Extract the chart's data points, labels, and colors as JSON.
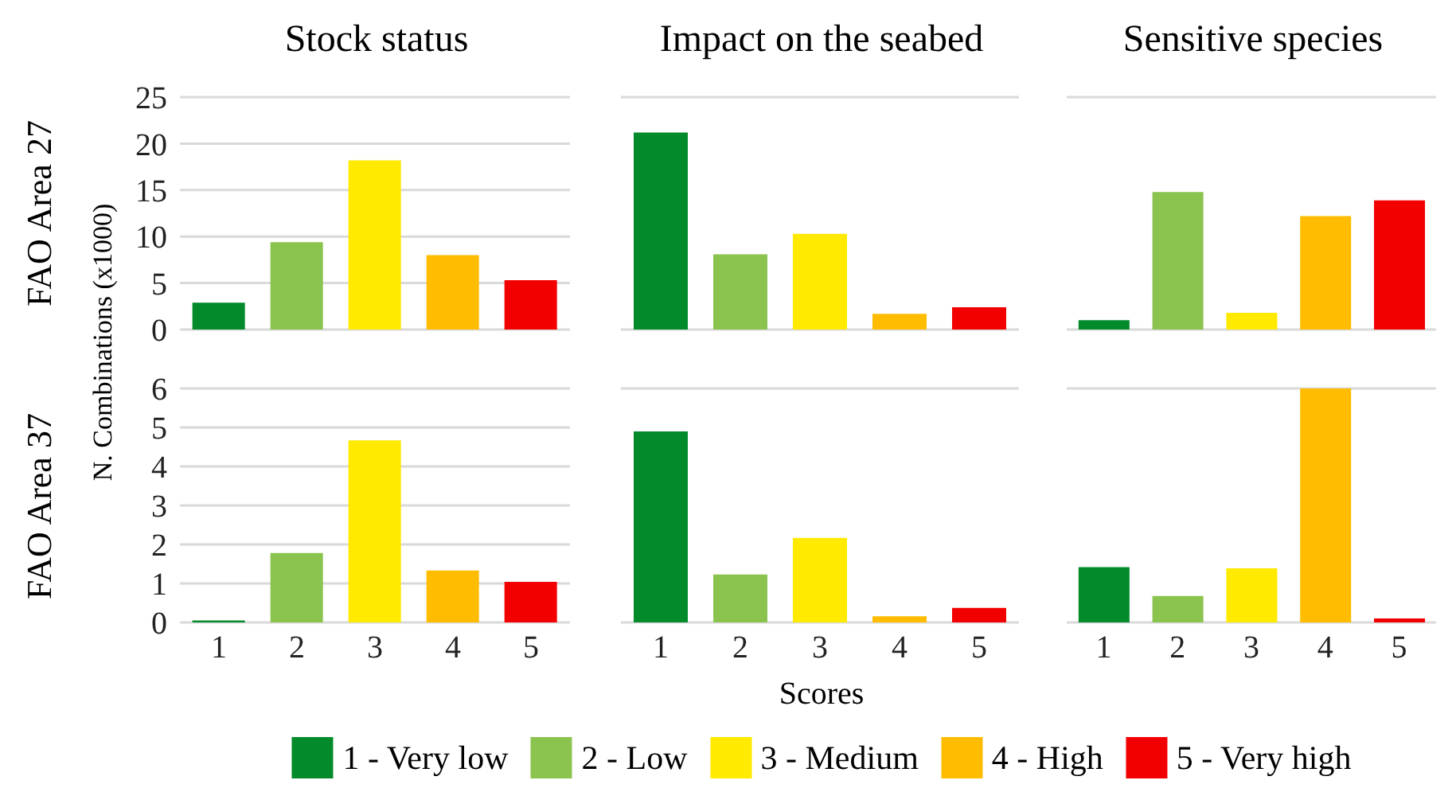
{
  "chart_data": [
    {
      "type": "bar",
      "title": "Stock status",
      "annotations": [
        "FAO Area 27"
      ],
      "categories": [
        "1",
        "2",
        "3",
        "4",
        "5"
      ],
      "stacked": true,
      "ylim": [
        0,
        25
      ],
      "yticks": [
        0,
        5,
        10,
        15,
        20,
        25
      ],
      "grid": "y",
      "tick_labels": "y",
      "series": [
        {
          "color": "#028a2b",
          "values": [
            2.9,
            null,
            null,
            null,
            null
          ]
        },
        {
          "color": "#8bc34f",
          "values": [
            null,
            9.4,
            null,
            null,
            null
          ]
        },
        {
          "color": "#ffea00",
          "values": [
            null,
            null,
            18.2,
            null,
            null
          ]
        },
        {
          "color": "#ffbc00",
          "values": [
            null,
            null,
            null,
            8.0,
            null
          ]
        },
        {
          "color": "#f20000",
          "values": [
            null,
            null,
            null,
            null,
            5.3
          ]
        }
      ]
    },
    {
      "type": "bar",
      "title": "Impact on the seabed",
      "categories": [
        "1",
        "2",
        "3",
        "4",
        "5"
      ],
      "stacked": true,
      "ylim": [
        0,
        25
      ],
      "yticks": [
        0,
        5,
        10,
        15,
        20,
        25
      ],
      "grid": "y",
      "tick_labels": false,
      "series": [
        {
          "color": "#028a2b",
          "values": [
            21.2,
            null,
            null,
            null,
            null
          ]
        },
        {
          "color": "#8bc34f",
          "values": [
            null,
            8.1,
            null,
            null,
            null
          ]
        },
        {
          "color": "#ffea00",
          "values": [
            null,
            null,
            10.3,
            null,
            null
          ]
        },
        {
          "color": "#ffbc00",
          "values": [
            null,
            null,
            null,
            1.7,
            null
          ]
        },
        {
          "color": "#f20000",
          "values": [
            null,
            null,
            null,
            null,
            2.4
          ]
        }
      ]
    },
    {
      "type": "bar",
      "title": "Sensitive species",
      "categories": [
        "1",
        "2",
        "3",
        "4",
        "5"
      ],
      "stacked": true,
      "ylim": [
        0,
        25
      ],
      "yticks": [
        0,
        5,
        10,
        15,
        20,
        25
      ],
      "grid": "y",
      "tick_labels": false,
      "series": [
        {
          "color": "#028a2b",
          "values": [
            1.0,
            null,
            null,
            null,
            null
          ]
        },
        {
          "color": "#8bc34f",
          "values": [
            null,
            14.8,
            null,
            null,
            null
          ]
        },
        {
          "color": "#ffea00",
          "values": [
            null,
            null,
            1.8,
            null,
            null
          ]
        },
        {
          "color": "#ffbc00",
          "values": [
            null,
            null,
            null,
            12.2,
            null
          ]
        },
        {
          "color": "#f20000",
          "values": [
            null,
            null,
            null,
            null,
            13.9
          ]
        }
      ]
    },
    {
      "type": "bar",
      "ylabel": "N. Combinations (x1000)",
      "annotations": [
        "FAO Area 37"
      ],
      "categories": [
        "1",
        "2",
        "3",
        "4",
        "5"
      ],
      "stacked": true,
      "ylim": [
        0,
        6
      ],
      "yticks": [
        0,
        1,
        2,
        3,
        4,
        5,
        6
      ],
      "grid": "y",
      "series": [
        {
          "color": "#028a2b",
          "values": [
            0.05,
            null,
            null,
            null,
            null
          ]
        },
        {
          "color": "#8bc34f",
          "values": [
            null,
            1.78,
            null,
            null,
            null
          ]
        },
        {
          "color": "#ffea00",
          "values": [
            null,
            null,
            4.67,
            null,
            null
          ]
        },
        {
          "color": "#ffbc00",
          "values": [
            null,
            null,
            null,
            1.33,
            null
          ]
        },
        {
          "color": "#f20000",
          "values": [
            null,
            null,
            null,
            null,
            1.04
          ]
        }
      ]
    },
    {
      "type": "bar",
      "xlabel": "Scores",
      "categories": [
        "1",
        "2",
        "3",
        "4",
        "5"
      ],
      "stacked": true,
      "ylim": [
        0,
        6
      ],
      "yticks": [
        0,
        1,
        2,
        3,
        4,
        5,
        6
      ],
      "grid": "y",
      "tick_labels": "x",
      "legend": "bottom",
      "series": [
        {
          "name": "1 - Very low",
          "color": "#028a2b",
          "values": [
            4.9,
            null,
            null,
            null,
            null
          ]
        },
        {
          "name": "2 - Low",
          "color": "#8bc34f",
          "values": [
            null,
            1.23,
            null,
            null,
            null
          ]
        },
        {
          "name": "3 - Medium",
          "color": "#ffea00",
          "values": [
            null,
            null,
            2.17,
            null,
            null
          ]
        },
        {
          "name": "4 - High",
          "color": "#ffbc00",
          "values": [
            null,
            null,
            null,
            0.16,
            null
          ]
        },
        {
          "name": "5 - Very high",
          "color": "#f20000",
          "values": [
            null,
            null,
            null,
            null,
            0.37
          ]
        }
      ]
    },
    {
      "type": "bar",
      "categories": [
        "1",
        "2",
        "3",
        "4",
        "5"
      ],
      "stacked": true,
      "ylim": [
        0,
        6
      ],
      "yticks": [
        0,
        1,
        2,
        3,
        4,
        5,
        6
      ],
      "grid": "y",
      "tick_labels": "x",
      "series": [
        {
          "color": "#028a2b",
          "values": [
            1.42,
            null,
            null,
            null,
            null
          ]
        },
        {
          "color": "#8bc34f",
          "values": [
            null,
            0.68,
            null,
            null,
            null
          ]
        },
        {
          "color": "#ffea00",
          "values": [
            null,
            null,
            1.39,
            null,
            null
          ]
        },
        {
          "color": "#ffbc00",
          "values": [
            null,
            null,
            null,
            6.0,
            null
          ]
        },
        {
          "color": "#f20000",
          "values": [
            null,
            null,
            null,
            null,
            0.1
          ]
        }
      ]
    }
  ]
}
